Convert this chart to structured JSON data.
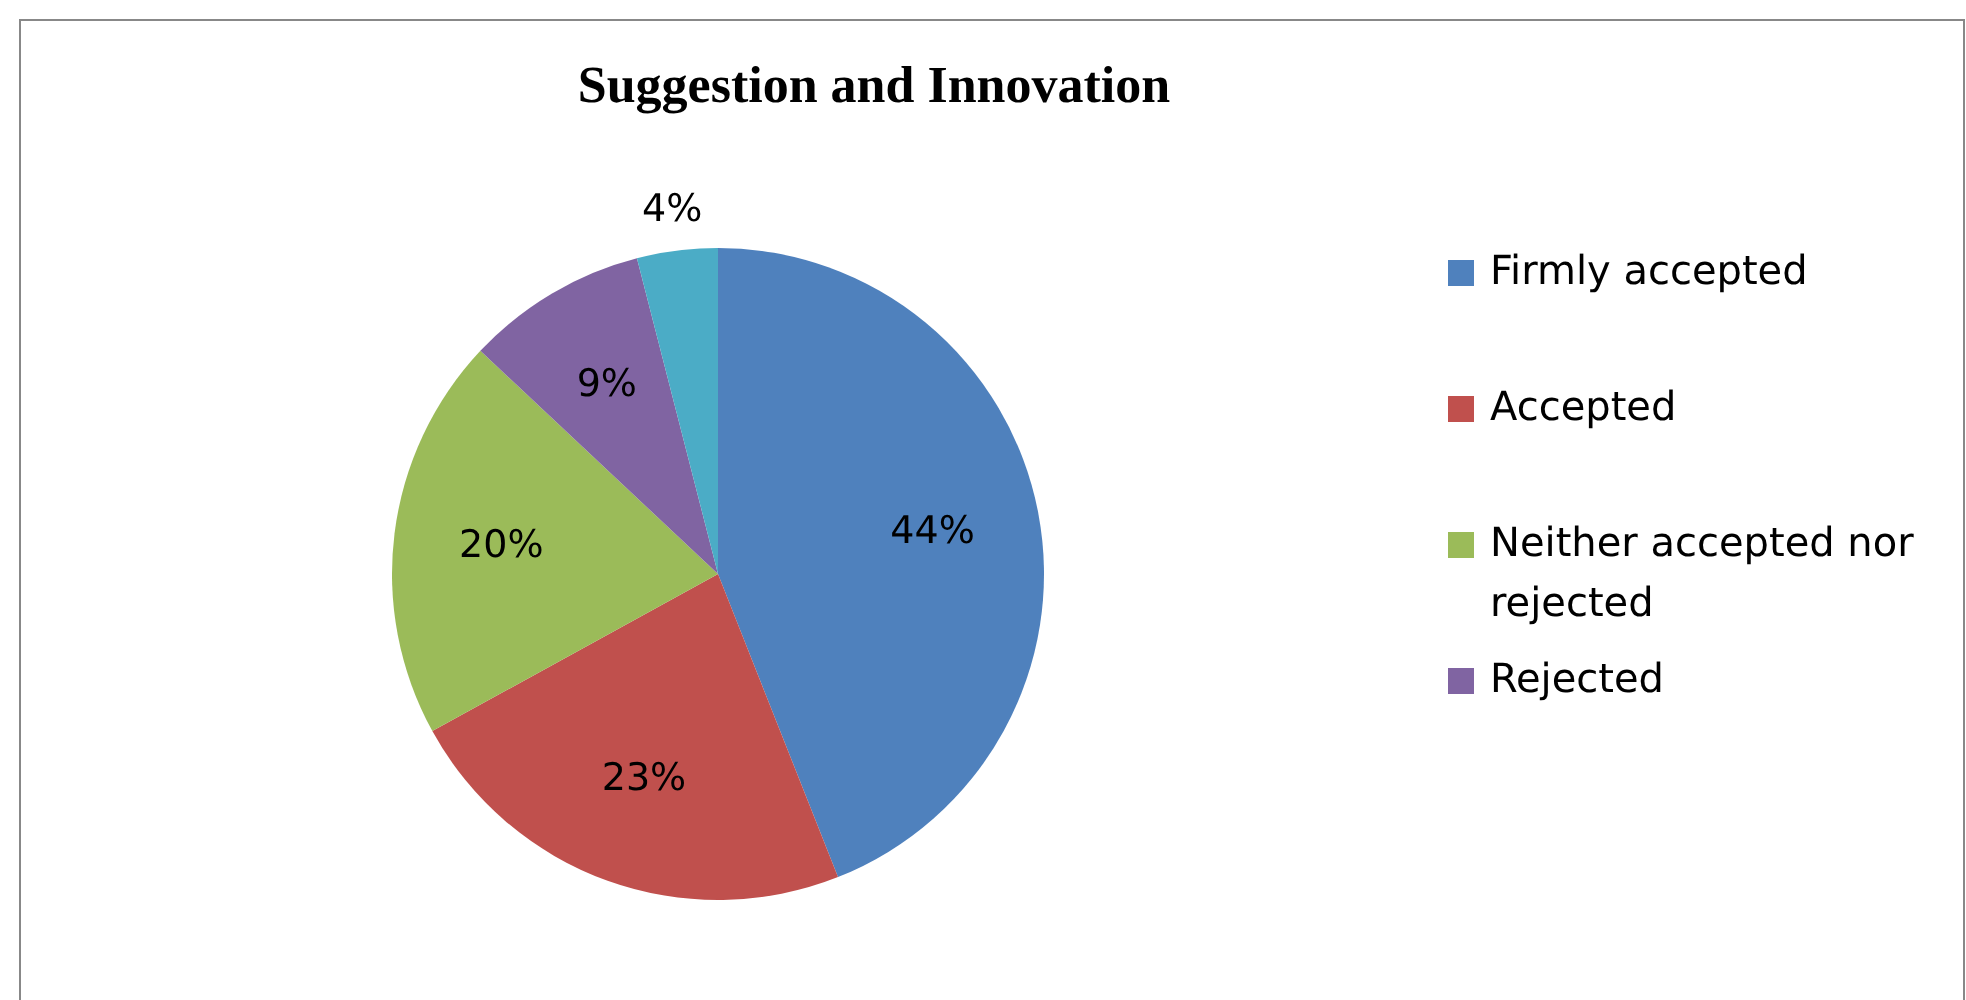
{
  "chart_data": {
    "type": "pie",
    "title": "Suggestion and Innovation",
    "categories": [
      "Firmly accepted",
      "Accepted",
      "Neither accepted nor rejected",
      "Rejected",
      null
    ],
    "values": [
      44,
      23,
      20,
      9,
      4
    ],
    "colors": [
      "#4f81bd",
      "#c0504d",
      "#9bbb59",
      "#8064a2",
      "#4bacc6"
    ],
    "value_labels": [
      "44%",
      "23%",
      "20%",
      "9%",
      "4%"
    ],
    "legend": "right"
  }
}
